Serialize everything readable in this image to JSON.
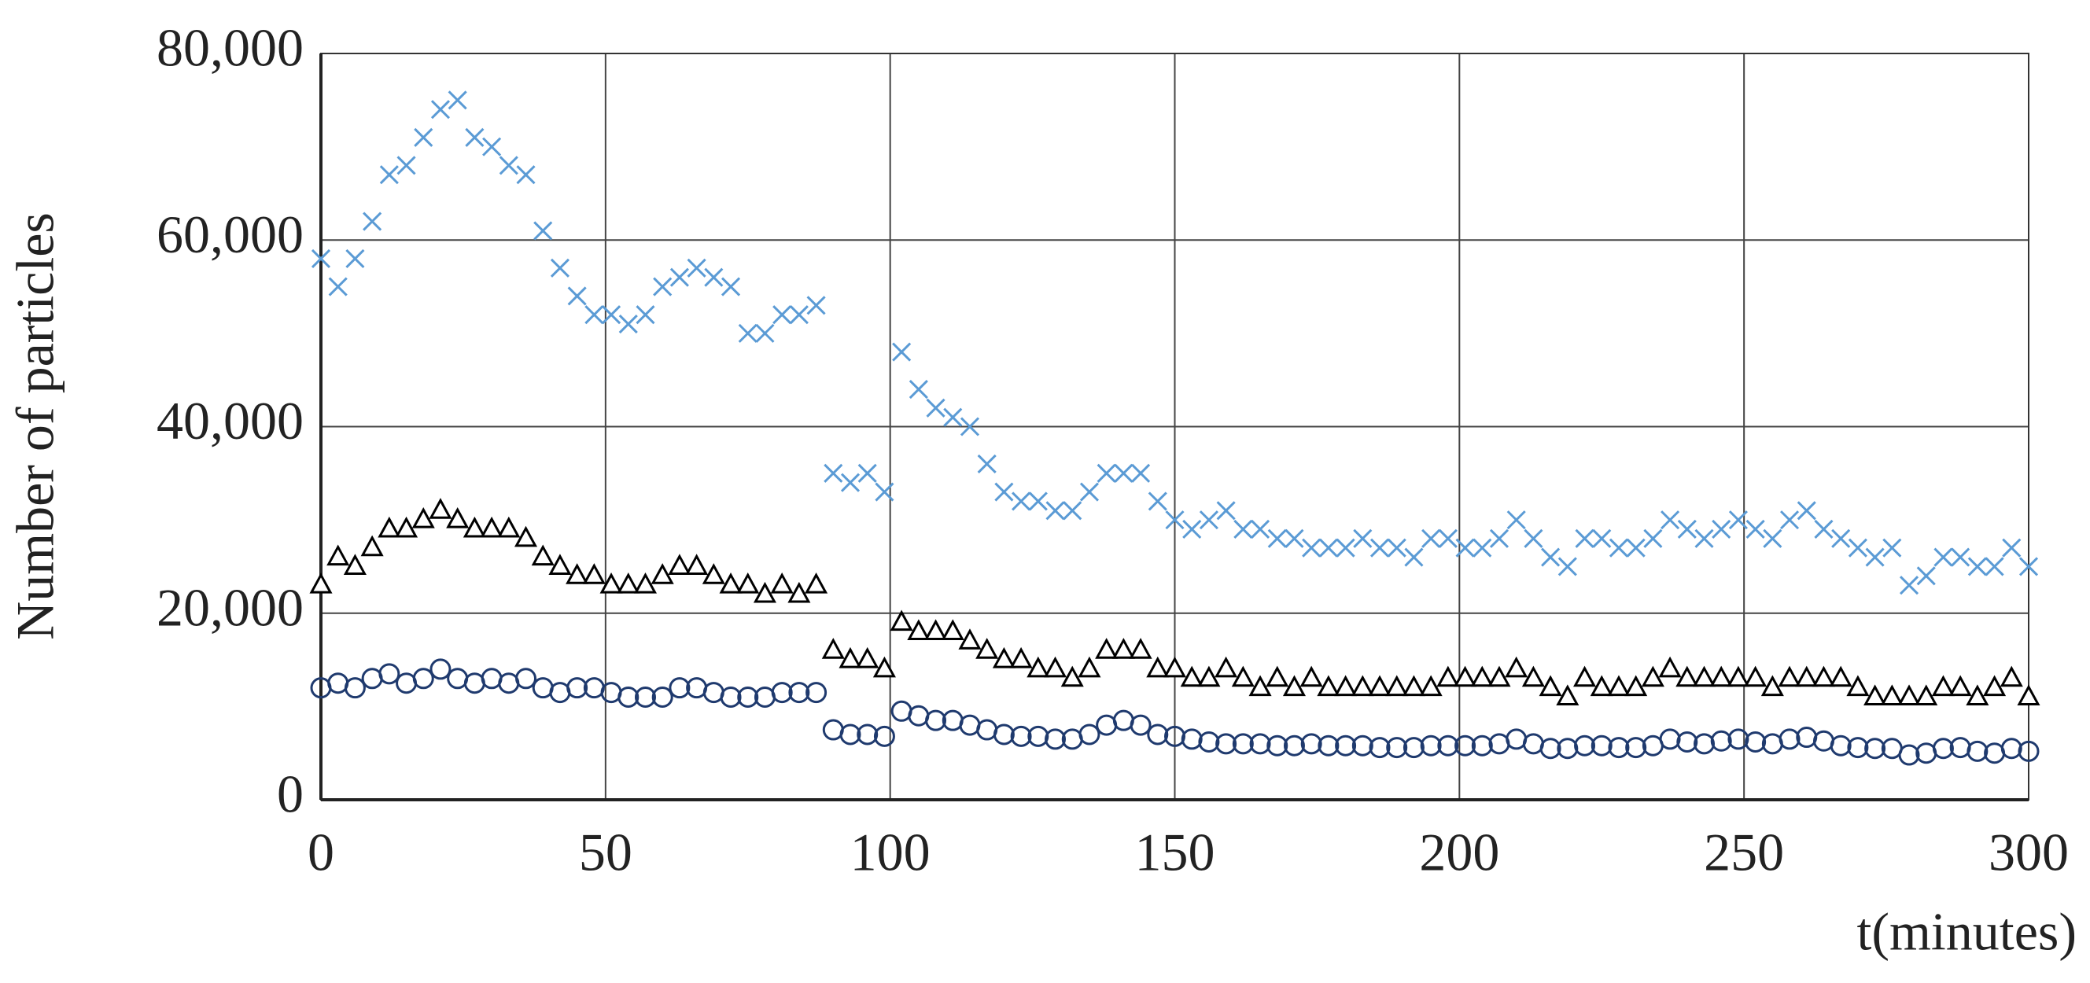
{
  "chart_data": {
    "type": "scatter",
    "ylabel": "Number of particles",
    "xlabel": "t(minutes)",
    "xlim": [
      0,
      300
    ],
    "ylim": [
      0,
      80000
    ],
    "xticks": [
      0,
      50,
      100,
      150,
      200,
      250,
      300
    ],
    "yticks": [
      0,
      {
        "value": 20000,
        "label": "20,000"
      },
      {
        "value": 40000,
        "label": "40,000"
      },
      {
        "value": 60000,
        "label": "60,000"
      },
      {
        "value": 80000,
        "label": "80,000"
      }
    ],
    "grid": true,
    "x": [
      0,
      3,
      6,
      9,
      12,
      15,
      18,
      21,
      24,
      27,
      30,
      33,
      36,
      39,
      42,
      45,
      48,
      51,
      54,
      57,
      60,
      63,
      66,
      69,
      72,
      75,
      78,
      81,
      84,
      87,
      90,
      93,
      96,
      99,
      102,
      105,
      108,
      111,
      114,
      117,
      120,
      123,
      126,
      129,
      132,
      135,
      138,
      141,
      144,
      147,
      150,
      153,
      156,
      159,
      162,
      165,
      168,
      171,
      174,
      177,
      180,
      183,
      186,
      189,
      192,
      195,
      198,
      201,
      204,
      207,
      210,
      213,
      216,
      219,
      222,
      225,
      228,
      231,
      234,
      237,
      240,
      243,
      246,
      249,
      252,
      255,
      258,
      261,
      264,
      267,
      270,
      273,
      276,
      279,
      282,
      285,
      288,
      291,
      294,
      297,
      300
    ],
    "series": [
      {
        "marker": "x",
        "color": "#5b9bd5",
        "values": [
          58000,
          55000,
          58000,
          62000,
          67000,
          68000,
          71000,
          74000,
          75000,
          71000,
          70000,
          68000,
          67000,
          61000,
          57000,
          54000,
          52000,
          52000,
          51000,
          52000,
          55000,
          56000,
          57000,
          56000,
          55000,
          50000,
          50000,
          52000,
          52000,
          53000,
          35000,
          34000,
          35000,
          33000,
          48000,
          44000,
          42000,
          41000,
          40000,
          36000,
          33000,
          32000,
          32000,
          31000,
          31000,
          33000,
          35000,
          35000,
          35000,
          32000,
          30000,
          29000,
          30000,
          31000,
          29000,
          29000,
          28000,
          28000,
          27000,
          27000,
          27000,
          28000,
          27000,
          27000,
          26000,
          28000,
          28000,
          27000,
          27000,
          28000,
          30000,
          28000,
          26000,
          25000,
          28000,
          28000,
          27000,
          27000,
          28000,
          30000,
          29000,
          28000,
          29000,
          30000,
          29000,
          28000,
          30000,
          31000,
          29000,
          28000,
          27000,
          26000,
          27000,
          23000,
          24000,
          26000,
          26000,
          25000,
          25000,
          27000,
          25000
        ]
      },
      {
        "marker": "triangle",
        "color": "#000000",
        "values": [
          23000,
          26000,
          25000,
          27000,
          29000,
          29000,
          30000,
          31000,
          30000,
          29000,
          29000,
          29000,
          28000,
          26000,
          25000,
          24000,
          24000,
          23000,
          23000,
          23000,
          24000,
          25000,
          25000,
          24000,
          23000,
          23000,
          22000,
          23000,
          22000,
          23000,
          16000,
          15000,
          15000,
          14000,
          19000,
          18000,
          18000,
          18000,
          17000,
          16000,
          15000,
          15000,
          14000,
          14000,
          13000,
          14000,
          16000,
          16000,
          16000,
          14000,
          14000,
          13000,
          13000,
          14000,
          13000,
          12000,
          13000,
          12000,
          13000,
          12000,
          12000,
          12000,
          12000,
          12000,
          12000,
          12000,
          13000,
          13000,
          13000,
          13000,
          14000,
          13000,
          12000,
          11000,
          13000,
          12000,
          12000,
          12000,
          13000,
          14000,
          13000,
          13000,
          13000,
          13000,
          13000,
          12000,
          13000,
          13000,
          13000,
          13000,
          12000,
          11000,
          11000,
          11000,
          11000,
          12000,
          12000,
          11000,
          12000,
          13000,
          11000
        ]
      },
      {
        "marker": "circle",
        "color": "#1f3a6e",
        "values": [
          12000,
          12500,
          12000,
          13000,
          13500,
          12500,
          13000,
          14000,
          13000,
          12500,
          13000,
          12500,
          13000,
          12000,
          11500,
          12000,
          12000,
          11500,
          11000,
          11000,
          11000,
          12000,
          12000,
          11500,
          11000,
          11000,
          11000,
          11500,
          11500,
          11500,
          7500,
          7000,
          7000,
          6800,
          9500,
          9000,
          8500,
          8500,
          8000,
          7500,
          7000,
          6800,
          6800,
          6500,
          6500,
          7000,
          8000,
          8500,
          8000,
          7000,
          6800,
          6500,
          6200,
          6000,
          6000,
          6000,
          5800,
          5800,
          6000,
          5800,
          5800,
          5800,
          5600,
          5600,
          5600,
          5800,
          5800,
          5800,
          5800,
          6000,
          6500,
          6000,
          5500,
          5500,
          5800,
          5800,
          5600,
          5600,
          5800,
          6500,
          6200,
          6000,
          6300,
          6500,
          6200,
          6000,
          6500,
          6700,
          6300,
          5800,
          5600,
          5500,
          5500,
          4800,
          5000,
          5500,
          5600,
          5200,
          5000,
          5500,
          5200
        ]
      }
    ]
  }
}
